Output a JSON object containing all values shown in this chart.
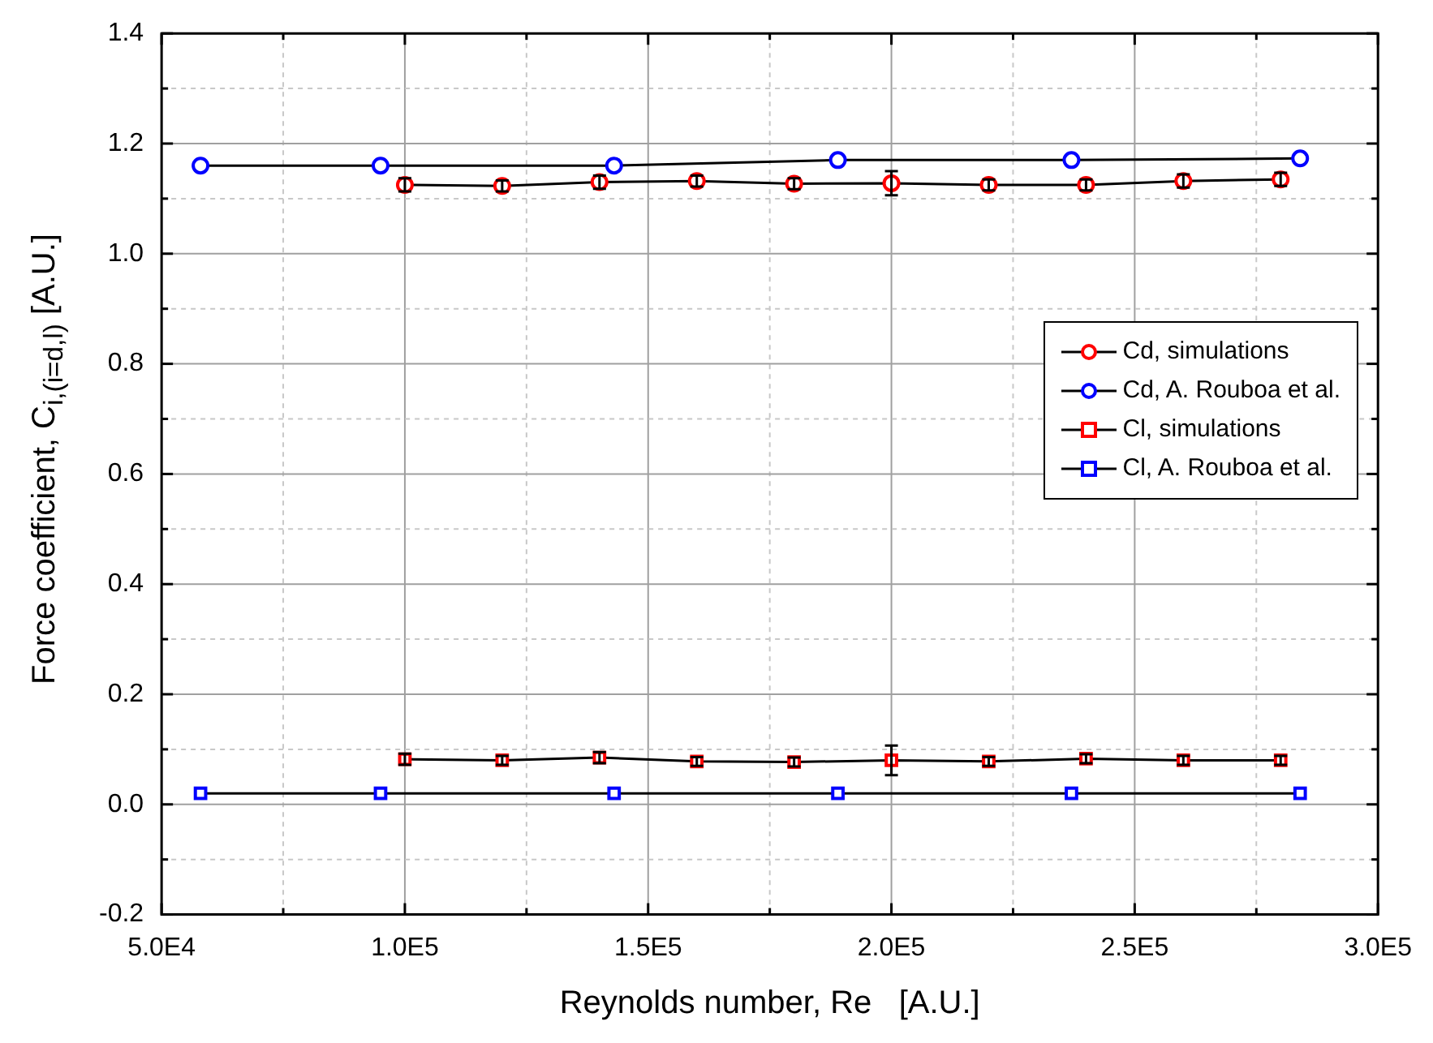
{
  "chart_data": {
    "type": "line",
    "xlabel": "Reynolds number, Re   [A.U.]",
    "ylabel": "Force coefficient, C$_{i,(i=d,l)}$   [A.U.]",
    "xlim": [
      50000,
      300000
    ],
    "xticks": [
      {
        "value": 50000,
        "label": "5.0E4"
      },
      {
        "value": 75000,
        "label": null
      },
      {
        "value": 100000,
        "label": "1.0E5"
      },
      {
        "value": 125000,
        "label": null
      },
      {
        "value": 150000,
        "label": "1.5E5"
      },
      {
        "value": 175000,
        "label": null
      },
      {
        "value": 200000,
        "label": "2.0E5"
      },
      {
        "value": 225000,
        "label": null
      },
      {
        "value": 250000,
        "label": "2.5E5"
      },
      {
        "value": 275000,
        "label": null
      },
      {
        "value": 300000,
        "label": "3.0E5"
      }
    ],
    "ylim": [
      -0.2,
      1.4
    ],
    "yticks": [
      {
        "value": -0.2,
        "label": "-0.2"
      },
      {
        "value": -0.1,
        "label": null
      },
      {
        "value": 0,
        "label": "0.0"
      },
      {
        "value": 0.1,
        "label": null
      },
      {
        "value": 0.2,
        "label": "0.2"
      },
      {
        "value": 0.3,
        "label": null
      },
      {
        "value": 0.4,
        "label": "0.4"
      },
      {
        "value": 0.5,
        "label": null
      },
      {
        "value": 0.6,
        "label": "0.6"
      },
      {
        "value": 0.7,
        "label": null
      },
      {
        "value": 0.8,
        "label": "0.8"
      },
      {
        "value": 0.9,
        "label": null
      },
      {
        "value": 1,
        "label": "1.0"
      },
      {
        "value": 1.1,
        "label": null
      },
      {
        "value": 1.2,
        "label": "1.2"
      },
      {
        "value": 1.3,
        "label": null
      },
      {
        "value": 1.4,
        "label": "1.4"
      }
    ],
    "grid": true,
    "legend": "right",
    "line_style": "solid",
    "series": [
      {
        "name": "Cd, simulations",
        "color": "#ff0000",
        "marker": "circle",
        "x": [
          100000,
          120000,
          140000,
          160000,
          180000,
          200000,
          220000,
          240000,
          260000,
          280000
        ],
        "values": [
          1.125,
          1.123,
          1.13,
          1.132,
          1.127,
          1.128,
          1.125,
          1.125,
          1.132,
          1.135
        ],
        "errors": [
          0.012,
          0.01,
          0.012,
          0.01,
          0.01,
          0.022,
          0.01,
          0.01,
          0.012,
          0.012
        ]
      },
      {
        "name": "Cd, A. Rouboa et al.",
        "color": "#0000ff",
        "marker": "circle",
        "x": [
          58000,
          95000,
          143000,
          189000,
          237000,
          284000
        ],
        "values": [
          1.16,
          1.16,
          1.16,
          1.17,
          1.17,
          1.173
        ]
      },
      {
        "name": "Cl, simulations",
        "color": "#ff0000",
        "marker": "square",
        "x": [
          100000,
          120000,
          140000,
          160000,
          180000,
          200000,
          220000,
          240000,
          260000,
          280000
        ],
        "values": [
          0.082,
          0.08,
          0.085,
          0.078,
          0.077,
          0.08,
          0.078,
          0.083,
          0.08,
          0.08
        ],
        "errors": [
          0.01,
          0.008,
          0.01,
          0.008,
          0.008,
          0.027,
          0.008,
          0.008,
          0.008,
          0.008
        ]
      },
      {
        "name": "Cl, A. Rouboa et al.",
        "color": "#0000ff",
        "marker": "square",
        "x": [
          58000,
          95000,
          143000,
          189000,
          237000,
          284000
        ],
        "values": [
          0.02,
          0.02,
          0.02,
          0.02,
          0.02,
          0.02
        ]
      }
    ]
  }
}
